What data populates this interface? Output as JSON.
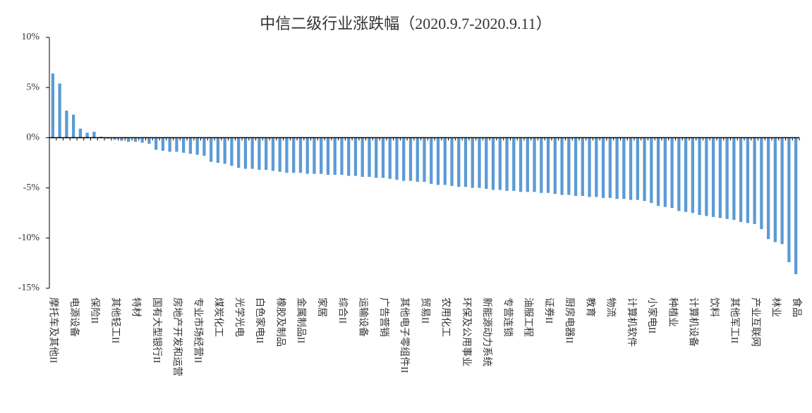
{
  "chart_data": {
    "type": "bar",
    "title": "中信二级行业涨跌幅（2020.9.7-2020.9.11）",
    "color": "#5b9bd5",
    "ylim": [
      -15,
      10
    ],
    "yticks": [
      {
        "value": -15,
        "label": "-15%"
      },
      {
        "value": -10,
        "label": "-10%"
      },
      {
        "value": -5,
        "label": "-5%"
      },
      {
        "value": 0,
        "label": "0%"
      },
      {
        "value": 5,
        "label": "5%"
      },
      {
        "value": 10,
        "label": "10%"
      }
    ],
    "categories": [
      "摩托车及其他II",
      null,
      null,
      "电源设备",
      null,
      null,
      "保险II",
      null,
      null,
      "其他轻工II",
      null,
      null,
      "特材",
      null,
      null,
      "国有大型银行II",
      null,
      null,
      "房地产开发和运营",
      null,
      null,
      "专业市场经营II",
      null,
      null,
      "煤炭化工",
      null,
      null,
      "光学光电",
      null,
      null,
      "白色家电II",
      null,
      null,
      "橡胶及制品",
      null,
      null,
      "金属制品II",
      null,
      null,
      "家居",
      null,
      null,
      "综合II",
      null,
      null,
      "运输设备",
      null,
      null,
      "广告营销",
      null,
      null,
      "其他电子零组件II",
      null,
      null,
      "贸易II",
      null,
      null,
      "农用化工",
      null,
      null,
      "环保及公用事业",
      null,
      null,
      "新能源动力系统",
      null,
      null,
      "专营连锁",
      null,
      null,
      "油服工程",
      null,
      null,
      "证券II",
      null,
      null,
      "厨房电器II",
      null,
      null,
      "教育",
      null,
      null,
      "物流",
      null,
      null,
      "计算机软件",
      null,
      null,
      "小家电II",
      null,
      null,
      "种植业",
      null,
      null,
      "计算机设备",
      null,
      null,
      "饮料",
      null,
      null,
      "其他军工II",
      null,
      null,
      "产业互联网",
      null,
      null,
      "林业",
      null,
      null,
      "食品"
    ],
    "values": [
      6.4,
      5.4,
      2.7,
      2.3,
      0.9,
      0.5,
      0.6,
      0.1,
      -0.1,
      -0.2,
      -0.3,
      -0.4,
      -0.4,
      -0.5,
      -0.6,
      -1.2,
      -1.3,
      -1.4,
      -1.4,
      -1.5,
      -1.6,
      -1.7,
      -1.8,
      -2.4,
      -2.5,
      -2.6,
      -2.8,
      -3.0,
      -3.1,
      -3.1,
      -3.2,
      -3.2,
      -3.3,
      -3.4,
      -3.5,
      -3.5,
      -3.5,
      -3.6,
      -3.6,
      -3.6,
      -3.7,
      -3.7,
      -3.7,
      -3.8,
      -3.8,
      -3.9,
      -3.9,
      -4.0,
      -4.0,
      -4.1,
      -4.2,
      -4.3,
      -4.3,
      -4.4,
      -4.4,
      -4.6,
      -4.7,
      -4.7,
      -4.8,
      -4.9,
      -4.9,
      -5.0,
      -5.0,
      -5.1,
      -5.2,
      -5.2,
      -5.3,
      -5.3,
      -5.4,
      -5.4,
      -5.4,
      -5.5,
      -5.5,
      -5.6,
      -5.7,
      -5.7,
      -5.8,
      -5.8,
      -5.9,
      -5.9,
      -6.0,
      -6.0,
      -6.1,
      -6.1,
      -6.2,
      -6.2,
      -6.3,
      -6.5,
      -6.8,
      -6.9,
      -7.0,
      -7.3,
      -7.4,
      -7.5,
      -7.7,
      -7.8,
      -7.9,
      -8.0,
      -8.1,
      -8.2,
      -8.4,
      -8.5,
      -8.6,
      -9.1,
      -10.1,
      -10.4,
      -10.6,
      -12.4,
      -13.6
    ]
  }
}
